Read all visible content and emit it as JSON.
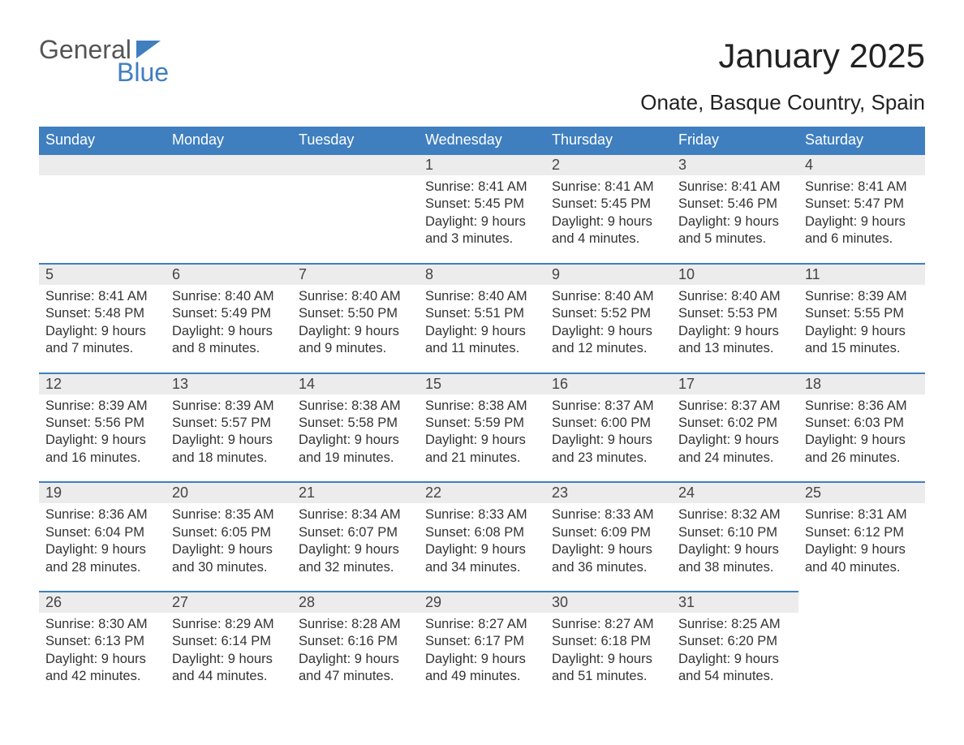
{
  "logo": {
    "word1": "General",
    "word2": "Blue"
  },
  "title": "January 2025",
  "location": "Onate, Basque Country, Spain",
  "header_bg": "#3f7fbf",
  "header_fg": "#ffffff",
  "row_accent": "#3f7fbf",
  "daynum_bg": "#ececec",
  "text_color": "#333333",
  "day_headers": [
    "Sunday",
    "Monday",
    "Tuesday",
    "Wednesday",
    "Thursday",
    "Friday",
    "Saturday"
  ],
  "weeks": [
    [
      null,
      null,
      null,
      {
        "n": "1",
        "sunrise": "Sunrise: 8:41 AM",
        "sunset": "Sunset: 5:45 PM",
        "daylight": "Daylight: 9 hours and 3 minutes."
      },
      {
        "n": "2",
        "sunrise": "Sunrise: 8:41 AM",
        "sunset": "Sunset: 5:45 PM",
        "daylight": "Daylight: 9 hours and 4 minutes."
      },
      {
        "n": "3",
        "sunrise": "Sunrise: 8:41 AM",
        "sunset": "Sunset: 5:46 PM",
        "daylight": "Daylight: 9 hours and 5 minutes."
      },
      {
        "n": "4",
        "sunrise": "Sunrise: 8:41 AM",
        "sunset": "Sunset: 5:47 PM",
        "daylight": "Daylight: 9 hours and 6 minutes."
      }
    ],
    [
      {
        "n": "5",
        "sunrise": "Sunrise: 8:41 AM",
        "sunset": "Sunset: 5:48 PM",
        "daylight": "Daylight: 9 hours and 7 minutes."
      },
      {
        "n": "6",
        "sunrise": "Sunrise: 8:40 AM",
        "sunset": "Sunset: 5:49 PM",
        "daylight": "Daylight: 9 hours and 8 minutes."
      },
      {
        "n": "7",
        "sunrise": "Sunrise: 8:40 AM",
        "sunset": "Sunset: 5:50 PM",
        "daylight": "Daylight: 9 hours and 9 minutes."
      },
      {
        "n": "8",
        "sunrise": "Sunrise: 8:40 AM",
        "sunset": "Sunset: 5:51 PM",
        "daylight": "Daylight: 9 hours and 11 minutes."
      },
      {
        "n": "9",
        "sunrise": "Sunrise: 8:40 AM",
        "sunset": "Sunset: 5:52 PM",
        "daylight": "Daylight: 9 hours and 12 minutes."
      },
      {
        "n": "10",
        "sunrise": "Sunrise: 8:40 AM",
        "sunset": "Sunset: 5:53 PM",
        "daylight": "Daylight: 9 hours and 13 minutes."
      },
      {
        "n": "11",
        "sunrise": "Sunrise: 8:39 AM",
        "sunset": "Sunset: 5:55 PM",
        "daylight": "Daylight: 9 hours and 15 minutes."
      }
    ],
    [
      {
        "n": "12",
        "sunrise": "Sunrise: 8:39 AM",
        "sunset": "Sunset: 5:56 PM",
        "daylight": "Daylight: 9 hours and 16 minutes."
      },
      {
        "n": "13",
        "sunrise": "Sunrise: 8:39 AM",
        "sunset": "Sunset: 5:57 PM",
        "daylight": "Daylight: 9 hours and 18 minutes."
      },
      {
        "n": "14",
        "sunrise": "Sunrise: 8:38 AM",
        "sunset": "Sunset: 5:58 PM",
        "daylight": "Daylight: 9 hours and 19 minutes."
      },
      {
        "n": "15",
        "sunrise": "Sunrise: 8:38 AM",
        "sunset": "Sunset: 5:59 PM",
        "daylight": "Daylight: 9 hours and 21 minutes."
      },
      {
        "n": "16",
        "sunrise": "Sunrise: 8:37 AM",
        "sunset": "Sunset: 6:00 PM",
        "daylight": "Daylight: 9 hours and 23 minutes."
      },
      {
        "n": "17",
        "sunrise": "Sunrise: 8:37 AM",
        "sunset": "Sunset: 6:02 PM",
        "daylight": "Daylight: 9 hours and 24 minutes."
      },
      {
        "n": "18",
        "sunrise": "Sunrise: 8:36 AM",
        "sunset": "Sunset: 6:03 PM",
        "daylight": "Daylight: 9 hours and 26 minutes."
      }
    ],
    [
      {
        "n": "19",
        "sunrise": "Sunrise: 8:36 AM",
        "sunset": "Sunset: 6:04 PM",
        "daylight": "Daylight: 9 hours and 28 minutes."
      },
      {
        "n": "20",
        "sunrise": "Sunrise: 8:35 AM",
        "sunset": "Sunset: 6:05 PM",
        "daylight": "Daylight: 9 hours and 30 minutes."
      },
      {
        "n": "21",
        "sunrise": "Sunrise: 8:34 AM",
        "sunset": "Sunset: 6:07 PM",
        "daylight": "Daylight: 9 hours and 32 minutes."
      },
      {
        "n": "22",
        "sunrise": "Sunrise: 8:33 AM",
        "sunset": "Sunset: 6:08 PM",
        "daylight": "Daylight: 9 hours and 34 minutes."
      },
      {
        "n": "23",
        "sunrise": "Sunrise: 8:33 AM",
        "sunset": "Sunset: 6:09 PM",
        "daylight": "Daylight: 9 hours and 36 minutes."
      },
      {
        "n": "24",
        "sunrise": "Sunrise: 8:32 AM",
        "sunset": "Sunset: 6:10 PM",
        "daylight": "Daylight: 9 hours and 38 minutes."
      },
      {
        "n": "25",
        "sunrise": "Sunrise: 8:31 AM",
        "sunset": "Sunset: 6:12 PM",
        "daylight": "Daylight: 9 hours and 40 minutes."
      }
    ],
    [
      {
        "n": "26",
        "sunrise": "Sunrise: 8:30 AM",
        "sunset": "Sunset: 6:13 PM",
        "daylight": "Daylight: 9 hours and 42 minutes."
      },
      {
        "n": "27",
        "sunrise": "Sunrise: 8:29 AM",
        "sunset": "Sunset: 6:14 PM",
        "daylight": "Daylight: 9 hours and 44 minutes."
      },
      {
        "n": "28",
        "sunrise": "Sunrise: 8:28 AM",
        "sunset": "Sunset: 6:16 PM",
        "daylight": "Daylight: 9 hours and 47 minutes."
      },
      {
        "n": "29",
        "sunrise": "Sunrise: 8:27 AM",
        "sunset": "Sunset: 6:17 PM",
        "daylight": "Daylight: 9 hours and 49 minutes."
      },
      {
        "n": "30",
        "sunrise": "Sunrise: 8:27 AM",
        "sunset": "Sunset: 6:18 PM",
        "daylight": "Daylight: 9 hours and 51 minutes."
      },
      {
        "n": "31",
        "sunrise": "Sunrise: 8:25 AM",
        "sunset": "Sunset: 6:20 PM",
        "daylight": "Daylight: 9 hours and 54 minutes."
      },
      null
    ]
  ]
}
